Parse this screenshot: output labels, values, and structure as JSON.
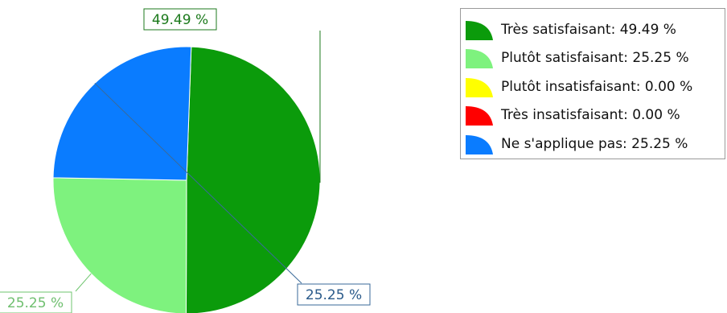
{
  "chart_data": {
    "type": "pie",
    "categories": [
      "Très satisfaisant",
      "Plutôt satisfaisant",
      "Plutôt insatisfaisant",
      "Très insatisfaisant",
      "Ne s'applique pas"
    ],
    "values": [
      49.49,
      25.25,
      0.0,
      0.0,
      25.25
    ],
    "colors": [
      "#0b9b0b",
      "#7ef27e",
      "#ffff00",
      "#ff0000",
      "#0a7cff"
    ],
    "data_labels": [
      "49.49 %",
      "25.25 %",
      "0.00 %",
      "0.00 %",
      "25.25 %"
    ],
    "legend": {
      "position": "top-right",
      "items": [
        {
          "label": "Très satisfaisant: 49.49 %",
          "color": "#0b9b0b"
        },
        {
          "label": "Plutôt satisfaisant: 25.25 %",
          "color": "#7ef27e"
        },
        {
          "label": "Plutôt insatisfaisant: 0.00 %",
          "color": "#ffff00"
        },
        {
          "label": "Très insatisfaisant: 0.00 %",
          "color": "#ff0000"
        },
        {
          "label": "Ne s'applique pas: 25.25 %",
          "color": "#0a7cff"
        }
      ]
    }
  }
}
